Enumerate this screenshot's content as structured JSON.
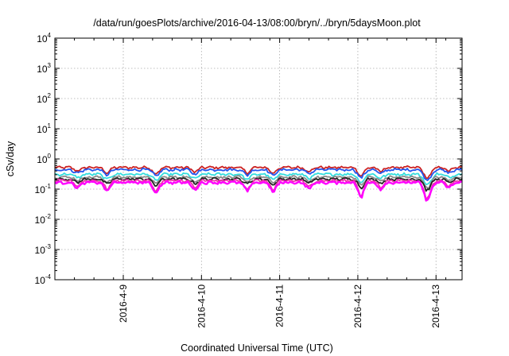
{
  "chart_data": {
    "type": "line",
    "title": "/data/run/goesPlots/archive/2016-04-13/08:00/bryn/../bryn/5daysMoon.plot",
    "xlabel": "Coordinated Universal Time (UTC)",
    "ylabel": "cSv/day",
    "y_scale": "log",
    "ylim": [
      0.0001,
      10000
    ],
    "y_ticks": [
      {
        "base": "10",
        "exp": "-4",
        "value": 0.0001
      },
      {
        "base": "10",
        "exp": "-3",
        "value": 0.001
      },
      {
        "base": "10",
        "exp": "-2",
        "value": 0.01
      },
      {
        "base": "10",
        "exp": "-1",
        "value": 0.1
      },
      {
        "base": "10",
        "exp": "0",
        "value": 1
      },
      {
        "base": "10",
        "exp": "1",
        "value": 10
      },
      {
        "base": "10",
        "exp": "2",
        "value": 100
      },
      {
        "base": "10",
        "exp": "3",
        "value": 1000
      },
      {
        "base": "10",
        "exp": "4",
        "value": 10000
      }
    ],
    "x_type": "date",
    "xlim": [
      "2016-04-08T03:00",
      "2016-04-13T08:00"
    ],
    "x_ticks": [
      {
        "label": "2016-4-9",
        "value": "2016-04-09T00:00"
      },
      {
        "label": "2016-4-10",
        "value": "2016-04-10T00:00"
      },
      {
        "label": "2016-4-11",
        "value": "2016-04-11T00:00"
      },
      {
        "label": "2016-4-12",
        "value": "2016-04-12T00:00"
      },
      {
        "label": "2016-4-13",
        "value": "2016-04-13T00:00"
      }
    ],
    "grid": true,
    "series": [
      {
        "color": "#cc2222",
        "base": 0.52
      },
      {
        "color": "#2255ee",
        "base": 0.44
      },
      {
        "color": "#33dddd",
        "base": 0.31
      },
      {
        "color": "#8a8a8a",
        "base": 0.25
      },
      {
        "color": "#222222",
        "base": 0.215
      },
      {
        "color": "#ee33aa",
        "base": 0.19
      },
      {
        "color": "#ff00ff",
        "base": 0.165
      }
    ],
    "dips": [
      {
        "t": "2016-04-08T10:00",
        "depth": 0.35
      },
      {
        "t": "2016-04-08T19:00",
        "depth": 0.5
      },
      {
        "t": "2016-04-09T10:00",
        "depth": 0.6
      },
      {
        "t": "2016-04-09T22:00",
        "depth": 0.45
      },
      {
        "t": "2016-04-10T14:00",
        "depth": 0.5
      },
      {
        "t": "2016-04-10T22:00",
        "depth": 0.55
      },
      {
        "t": "2016-04-11T09:00",
        "depth": 0.4
      },
      {
        "t": "2016-04-12T01:00",
        "depth": 0.75
      },
      {
        "t": "2016-04-12T07:00",
        "depth": 0.4
      },
      {
        "t": "2016-04-12T22:00",
        "depth": 0.45
      },
      {
        "t": "2016-04-12T21:00",
        "depth": 0.7
      },
      {
        "t": "2016-04-13T04:00",
        "depth": 0.35
      }
    ]
  }
}
